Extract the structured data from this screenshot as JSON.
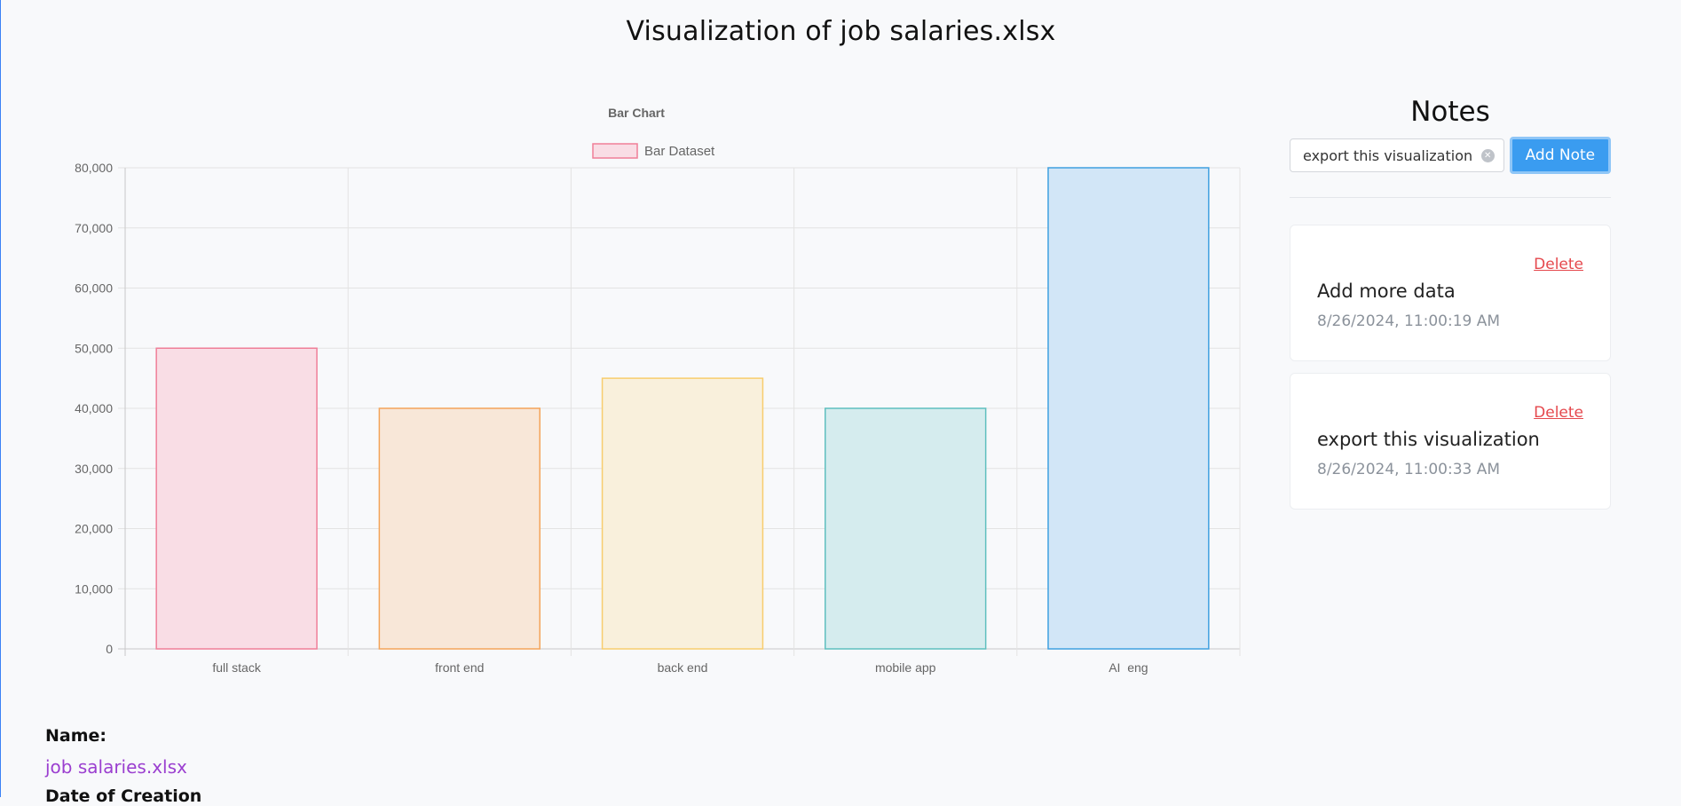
{
  "page": {
    "title": "Visualization of job salaries.xlsx"
  },
  "chart_data": {
    "type": "bar",
    "title": "Bar Chart",
    "legend": {
      "label": "Bar Dataset",
      "position": "top"
    },
    "categories": [
      "full stack",
      "front end",
      "back end",
      "mobile app",
      "AI  eng"
    ],
    "values": [
      50000,
      40000,
      45000,
      40000,
      80000
    ],
    "ylim": [
      0,
      80000
    ],
    "yticks": [
      0,
      10000,
      20000,
      30000,
      40000,
      50000,
      60000,
      70000,
      80000
    ],
    "ytick_labels": [
      "0",
      "10,000",
      "20,000",
      "30,000",
      "40,000",
      "50,000",
      "60,000",
      "70,000",
      "80,000"
    ],
    "grid": true,
    "colors": {
      "fills": [
        "#f9dde5",
        "#f8e7d8",
        "#f9f0dc",
        "#d5ecee",
        "#d2e6f7"
      ],
      "borders": [
        "#ef7f98",
        "#f4a45a",
        "#f8cd6e",
        "#5fbfbf",
        "#3fa0e0"
      ],
      "legend_fill": "#f9dde5",
      "legend_border": "#ef7f98"
    }
  },
  "notes": {
    "title": "Notes",
    "input_value": "export this visualization",
    "add_label": "Add Note",
    "items": [
      {
        "text": "Add more data",
        "timestamp": "8/26/2024, 11:00:19 AM",
        "delete_label": "Delete"
      },
      {
        "text": "export this visualization",
        "timestamp": "8/26/2024, 11:00:33 AM",
        "delete_label": "Delete"
      }
    ]
  },
  "meta": {
    "name_label": "Name:",
    "name_value": "job salaries.xlsx",
    "created_label": "Date of Creation"
  }
}
